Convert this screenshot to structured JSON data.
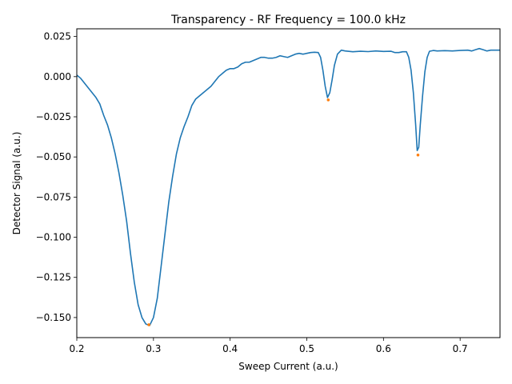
{
  "chart_data": {
    "type": "line",
    "title": "Transparency - RF Frequency = 100.0 kHz",
    "xlabel": "Sweep Current (a.u.)",
    "ylabel": "Detector Signal (a.u.)",
    "xlim": [
      0.2,
      0.752
    ],
    "ylim": [
      -0.1625,
      0.0298
    ],
    "grid": false,
    "xticks": [
      0.2,
      0.3,
      0.4,
      0.5,
      0.6,
      0.7
    ],
    "xtick_labels": [
      "0.2",
      "0.3",
      "0.4",
      "0.5",
      "0.6",
      "0.7"
    ],
    "yticks": [
      0.025,
      0.0,
      -0.025,
      -0.05,
      -0.075,
      -0.1,
      -0.125,
      -0.15
    ],
    "ytick_labels": [
      "0.025",
      "0.000",
      "−0.025",
      "−0.050",
      "−0.075",
      "−0.100",
      "−0.125",
      "−0.150"
    ],
    "colors": {
      "signal": "#1f77b4",
      "minima": "#ff7f0e"
    },
    "series": [
      {
        "points": [
          [
            0.2,
            0.001
          ],
          [
            0.205,
            -0.001
          ],
          [
            0.21,
            -0.004
          ],
          [
            0.215,
            -0.007
          ],
          [
            0.22,
            -0.01
          ],
          [
            0.225,
            -0.013
          ],
          [
            0.23,
            -0.017
          ],
          [
            0.235,
            -0.024
          ],
          [
            0.24,
            -0.03
          ],
          [
            0.245,
            -0.038
          ],
          [
            0.25,
            -0.048
          ],
          [
            0.255,
            -0.06
          ],
          [
            0.26,
            -0.074
          ],
          [
            0.265,
            -0.09
          ],
          [
            0.27,
            -0.11
          ],
          [
            0.275,
            -0.128
          ],
          [
            0.28,
            -0.142
          ],
          [
            0.285,
            -0.15
          ],
          [
            0.29,
            -0.154
          ],
          [
            0.295,
            -0.155
          ],
          [
            0.3,
            -0.15
          ],
          [
            0.305,
            -0.138
          ],
          [
            0.31,
            -0.118
          ],
          [
            0.315,
            -0.098
          ],
          [
            0.32,
            -0.078
          ],
          [
            0.325,
            -0.062
          ],
          [
            0.33,
            -0.048
          ],
          [
            0.335,
            -0.038
          ],
          [
            0.34,
            -0.031
          ],
          [
            0.345,
            -0.025
          ],
          [
            0.35,
            -0.018
          ],
          [
            0.355,
            -0.014
          ],
          [
            0.36,
            -0.012
          ],
          [
            0.365,
            -0.01
          ],
          [
            0.37,
            -0.008
          ],
          [
            0.375,
            -0.006
          ],
          [
            0.38,
            -0.003
          ],
          [
            0.385,
            0.0
          ],
          [
            0.39,
            0.002
          ],
          [
            0.395,
            0.004
          ],
          [
            0.4,
            0.005
          ],
          [
            0.405,
            0.005
          ],
          [
            0.41,
            0.006
          ],
          [
            0.415,
            0.008
          ],
          [
            0.42,
            0.009
          ],
          [
            0.425,
            0.009
          ],
          [
            0.43,
            0.01
          ],
          [
            0.435,
            0.011
          ],
          [
            0.44,
            0.012
          ],
          [
            0.445,
            0.012
          ],
          [
            0.45,
            0.0115
          ],
          [
            0.455,
            0.0115
          ],
          [
            0.46,
            0.012
          ],
          [
            0.465,
            0.013
          ],
          [
            0.47,
            0.0125
          ],
          [
            0.475,
            0.012
          ],
          [
            0.48,
            0.013
          ],
          [
            0.485,
            0.014
          ],
          [
            0.49,
            0.0145
          ],
          [
            0.495,
            0.014
          ],
          [
            0.5,
            0.0145
          ],
          [
            0.505,
            0.015
          ],
          [
            0.51,
            0.0152
          ],
          [
            0.515,
            0.015
          ],
          [
            0.518,
            0.012
          ],
          [
            0.521,
            0.004
          ],
          [
            0.524,
            -0.006
          ],
          [
            0.527,
            -0.013
          ],
          [
            0.53,
            -0.01
          ],
          [
            0.533,
            -0.002
          ],
          [
            0.536,
            0.007
          ],
          [
            0.54,
            0.014
          ],
          [
            0.545,
            0.0165
          ],
          [
            0.55,
            0.016
          ],
          [
            0.56,
            0.0155
          ],
          [
            0.57,
            0.0158
          ],
          [
            0.58,
            0.0156
          ],
          [
            0.59,
            0.016
          ],
          [
            0.6,
            0.0157
          ],
          [
            0.61,
            0.0158
          ],
          [
            0.615,
            0.015
          ],
          [
            0.62,
            0.015
          ],
          [
            0.625,
            0.0155
          ],
          [
            0.63,
            0.0155
          ],
          [
            0.633,
            0.012
          ],
          [
            0.636,
            0.004
          ],
          [
            0.639,
            -0.01
          ],
          [
            0.642,
            -0.03
          ],
          [
            0.644,
            -0.046
          ],
          [
            0.646,
            -0.044
          ],
          [
            0.648,
            -0.03
          ],
          [
            0.651,
            -0.012
          ],
          [
            0.654,
            0.003
          ],
          [
            0.657,
            0.012
          ],
          [
            0.66,
            0.0158
          ],
          [
            0.665,
            0.0163
          ],
          [
            0.67,
            0.016
          ],
          [
            0.68,
            0.0162
          ],
          [
            0.69,
            0.016
          ],
          [
            0.7,
            0.0163
          ],
          [
            0.71,
            0.0165
          ],
          [
            0.715,
            0.016
          ],
          [
            0.72,
            0.0168
          ],
          [
            0.725,
            0.0175
          ],
          [
            0.73,
            0.0168
          ],
          [
            0.735,
            0.016
          ],
          [
            0.74,
            0.0165
          ],
          [
            0.745,
            0.0165
          ],
          [
            0.752,
            0.0165
          ]
        ]
      }
    ],
    "markers": [
      [
        0.294,
        -0.1545
      ],
      [
        0.528,
        -0.0145
      ],
      [
        0.645,
        -0.0488
      ]
    ]
  }
}
